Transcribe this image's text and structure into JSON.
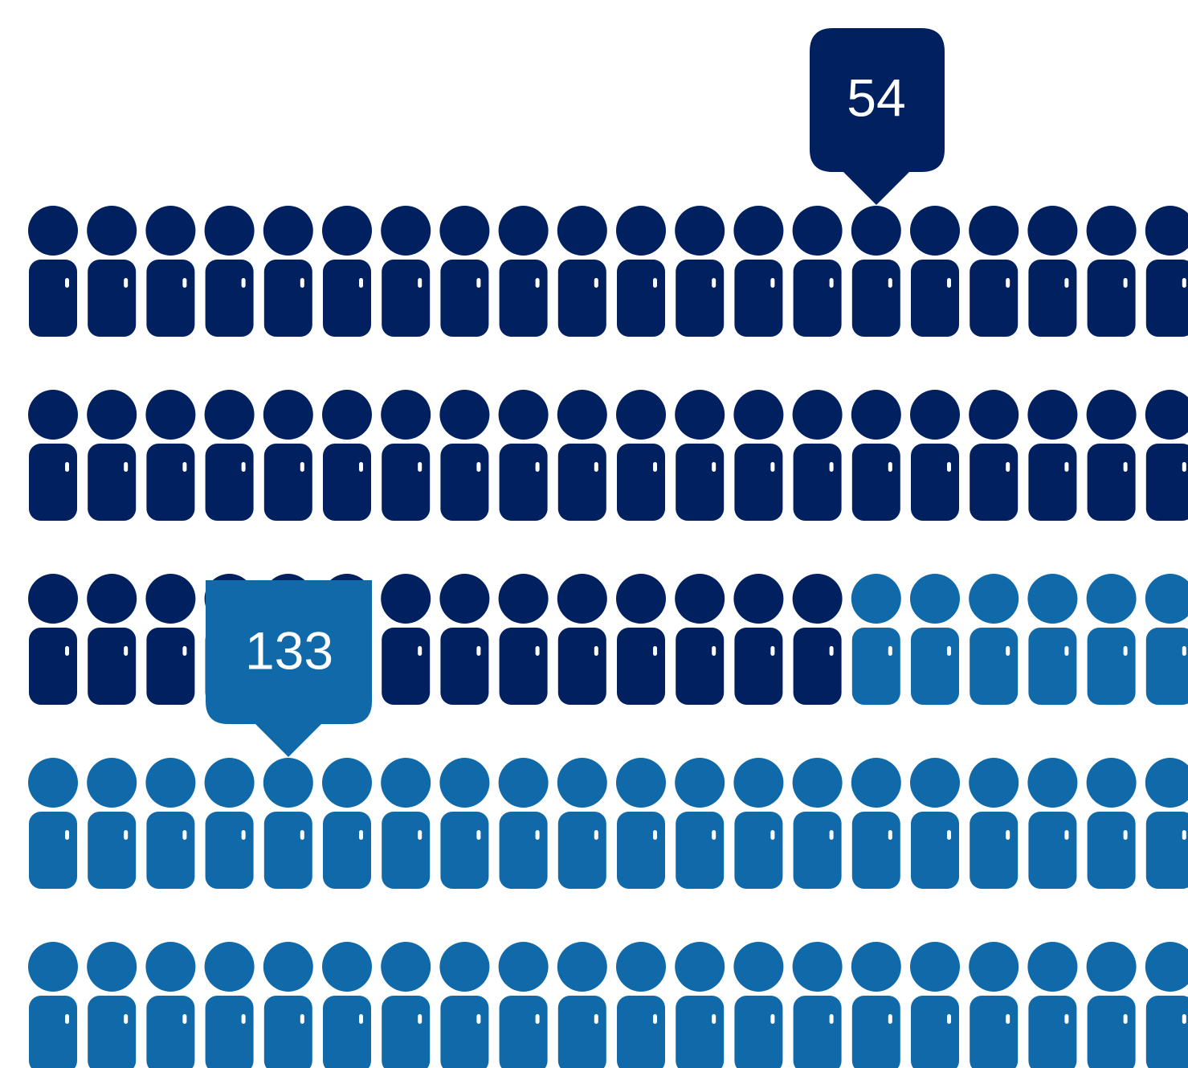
{
  "colors": {
    "primary": "#002060",
    "secondary": "#1069A8",
    "background": "#FFFFFF"
  },
  "chart_data": {
    "type": "pictogram",
    "icon": "person-icon",
    "series": [
      {
        "value": 54,
        "color_key": "primary"
      },
      {
        "value": 133,
        "color_key": "secondary"
      }
    ],
    "callouts": [
      {
        "label": "54",
        "series_index": 0
      },
      {
        "label": "133",
        "series_index": 1
      }
    ]
  }
}
